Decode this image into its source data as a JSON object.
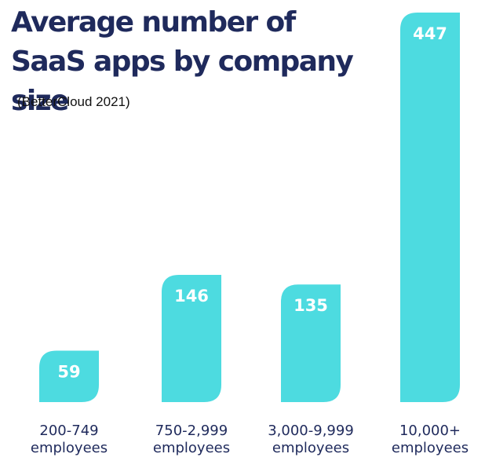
{
  "chart_data": {
    "type": "bar",
    "title": "Average number of SaaS apps by company size",
    "subtitle": "(BetterCloud 2021)",
    "categories": [
      [
        "200-749",
        "employees"
      ],
      [
        "750-2,999",
        "employees"
      ],
      [
        "3,000-9,999",
        "employees"
      ],
      [
        "10,000+",
        "employees"
      ]
    ],
    "values": [
      59,
      146,
      135,
      447
    ],
    "data_labels": [
      "59",
      "146",
      "135",
      "447"
    ],
    "ylim": [
      0,
      447
    ],
    "grid": false,
    "legend": "none",
    "bar_color": "#4ddbe0",
    "title_color": "#1f2a5c",
    "category_label_color": "#1f2a5c",
    "data_label_color": "#ffffff"
  }
}
